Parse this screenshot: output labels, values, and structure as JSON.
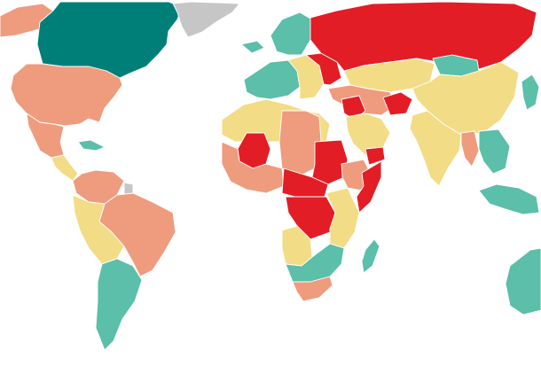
{
  "palette": {
    "very_high": "#007f79",
    "high": "#5bbfa9",
    "moderate": "#f3dc86",
    "low": "#ef9b7e",
    "very_low": "#e31d25",
    "no_data": "#c6c6c6",
    "ocean": "#ffffff"
  },
  "regions": [
    {
      "name": "canada",
      "level": "very_high"
    },
    {
      "name": "alaska",
      "level": "low"
    },
    {
      "name": "greenland",
      "level": "no_data"
    },
    {
      "name": "united-states",
      "level": "low"
    },
    {
      "name": "mexico",
      "level": "low"
    },
    {
      "name": "central-america",
      "level": "moderate"
    },
    {
      "name": "caribbean",
      "level": "high"
    },
    {
      "name": "south-america-north",
      "level": "low"
    },
    {
      "name": "brazil",
      "level": "low"
    },
    {
      "name": "andes",
      "level": "moderate"
    },
    {
      "name": "southern-cone",
      "level": "high"
    },
    {
      "name": "guyana",
      "level": "no_data"
    },
    {
      "name": "iceland",
      "level": "high"
    },
    {
      "name": "scandinavia",
      "level": "high"
    },
    {
      "name": "western-europe",
      "level": "high"
    },
    {
      "name": "eastern-europe",
      "level": "moderate"
    },
    {
      "name": "russia",
      "level": "very_low"
    },
    {
      "name": "ukraine-belarus",
      "level": "very_low"
    },
    {
      "name": "central-asia",
      "level": "moderate"
    },
    {
      "name": "mongolia",
      "level": "high"
    },
    {
      "name": "china",
      "level": "moderate"
    },
    {
      "name": "south-korea-japan",
      "level": "high"
    },
    {
      "name": "middle-east",
      "level": "low"
    },
    {
      "name": "syria-iraq",
      "level": "very_low"
    },
    {
      "name": "afghanistan",
      "level": "very_low"
    },
    {
      "name": "arabia",
      "level": "moderate"
    },
    {
      "name": "yemen",
      "level": "very_low"
    },
    {
      "name": "india",
      "level": "moderate"
    },
    {
      "name": "myanmar",
      "level": "low"
    },
    {
      "name": "southeast-asia",
      "level": "high"
    },
    {
      "name": "indonesia",
      "level": "high"
    },
    {
      "name": "australia",
      "level": "high"
    },
    {
      "name": "north-africa",
      "level": "moderate"
    },
    {
      "name": "libya-chad",
      "level": "low"
    },
    {
      "name": "mali",
      "level": "very_low"
    },
    {
      "name": "west-africa",
      "level": "low"
    },
    {
      "name": "sudan",
      "level": "very_low"
    },
    {
      "name": "ethiopia",
      "level": "low"
    },
    {
      "name": "somalia",
      "level": "very_low"
    },
    {
      "name": "central-africa",
      "level": "very_low"
    },
    {
      "name": "congo",
      "level": "very_low"
    },
    {
      "name": "east-africa",
      "level": "moderate"
    },
    {
      "name": "angola",
      "level": "moderate"
    },
    {
      "name": "southern-africa",
      "level": "high"
    },
    {
      "name": "south-africa",
      "level": "low"
    },
    {
      "name": "madagascar",
      "level": "high"
    }
  ]
}
